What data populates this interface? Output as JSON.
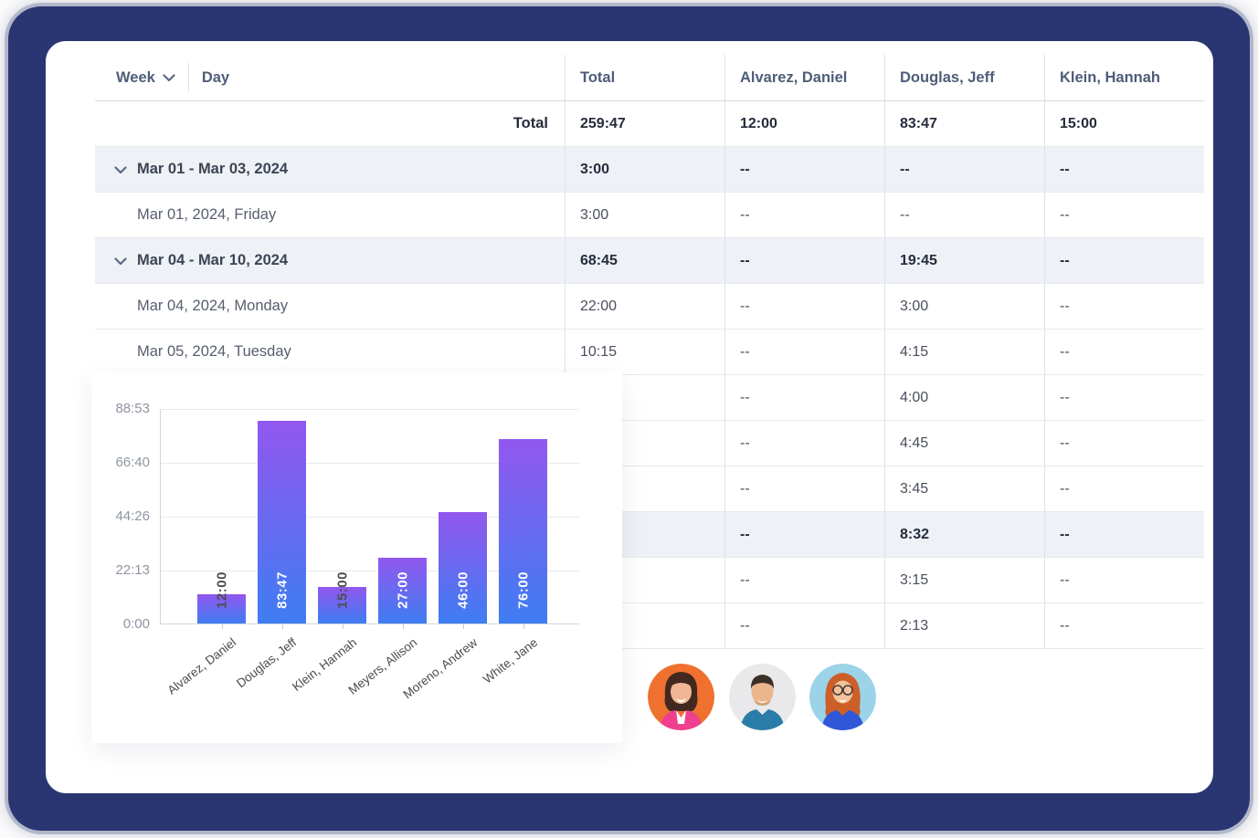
{
  "frame": {
    "outer_color": "#293672",
    "card_color": "#ffffff"
  },
  "table": {
    "header": {
      "week_label": "Week",
      "day_label": "Day",
      "columns": [
        "Total",
        "Alvarez, Daniel",
        "Douglas, Jeff",
        "Klein, Hannah"
      ]
    },
    "week_row_bg": "#eef1f6",
    "rows": [
      {
        "type": "total",
        "label": "Total",
        "cells": [
          "259:47",
          "12:00",
          "83:47",
          "15:00"
        ]
      },
      {
        "type": "week",
        "label": "Mar 01 - Mar 03, 2024",
        "cells": [
          "3:00",
          "--",
          "--",
          "--"
        ]
      },
      {
        "type": "day",
        "label": "Mar 01, 2024, Friday",
        "cells": [
          "3:00",
          "--",
          "--",
          "--"
        ]
      },
      {
        "type": "week",
        "label": "Mar 04 - Mar 10, 2024",
        "cells": [
          "68:45",
          "--",
          "19:45",
          "--"
        ]
      },
      {
        "type": "day",
        "label": "Mar 04, 2024, Monday",
        "cells": [
          "22:00",
          "--",
          "3:00",
          "--"
        ]
      },
      {
        "type": "day",
        "label": "Mar 05, 2024, Tuesday",
        "cells": [
          "10:15",
          "--",
          "4:15",
          "--"
        ]
      },
      {
        "type": "day",
        "label": "",
        "cells": [
          "",
          "--",
          "4:00",
          "--"
        ]
      },
      {
        "type": "day",
        "label": "",
        "cells": [
          "",
          "--",
          "4:45",
          "--"
        ]
      },
      {
        "type": "day",
        "label": "",
        "cells": [
          "",
          "--",
          "3:45",
          "--"
        ]
      },
      {
        "type": "week",
        "label": "",
        "cells": [
          "",
          "--",
          "8:32",
          "--"
        ]
      },
      {
        "type": "day",
        "label": "",
        "cells": [
          "",
          "--",
          "3:15",
          "--"
        ]
      },
      {
        "type": "day",
        "label": "",
        "cells": [
          "",
          "--",
          "2:13",
          "--"
        ]
      }
    ]
  },
  "chart_data": {
    "type": "bar",
    "categories": [
      "Alvarez, Daniel",
      "Douglas, Jeff",
      "Klein, Hannah",
      "Meyers, Allison",
      "Moreno, Andrew",
      "White, Jane"
    ],
    "values_hours": [
      12.0,
      83.78,
      15.0,
      27.0,
      46.0,
      76.0
    ],
    "bar_labels": [
      "12:00",
      "83:47",
      "15:00",
      "27:00",
      "46:00",
      "76:00"
    ],
    "y_ticks": [
      "0:00",
      "22:13",
      "44:26",
      "66:40",
      "88:53"
    ],
    "y_max_hours": 88.883,
    "ylim": [
      0,
      88.883
    ],
    "grid": true,
    "legend": false,
    "title": "",
    "xlabel": "",
    "ylabel": "",
    "bar_gradient_top": "#9257ee",
    "bar_gradient_bottom": "#3e7df2",
    "label_color_inside": "#ffffff",
    "label_color_outside": "#4e4e52"
  },
  "avatars": [
    {
      "name": "woman-pink-jacket",
      "bg": "#f0702f"
    },
    {
      "name": "man-blue-shirt",
      "bg": "#e9e9eb"
    },
    {
      "name": "woman-red-hair",
      "bg": "#9bd3e9"
    }
  ]
}
